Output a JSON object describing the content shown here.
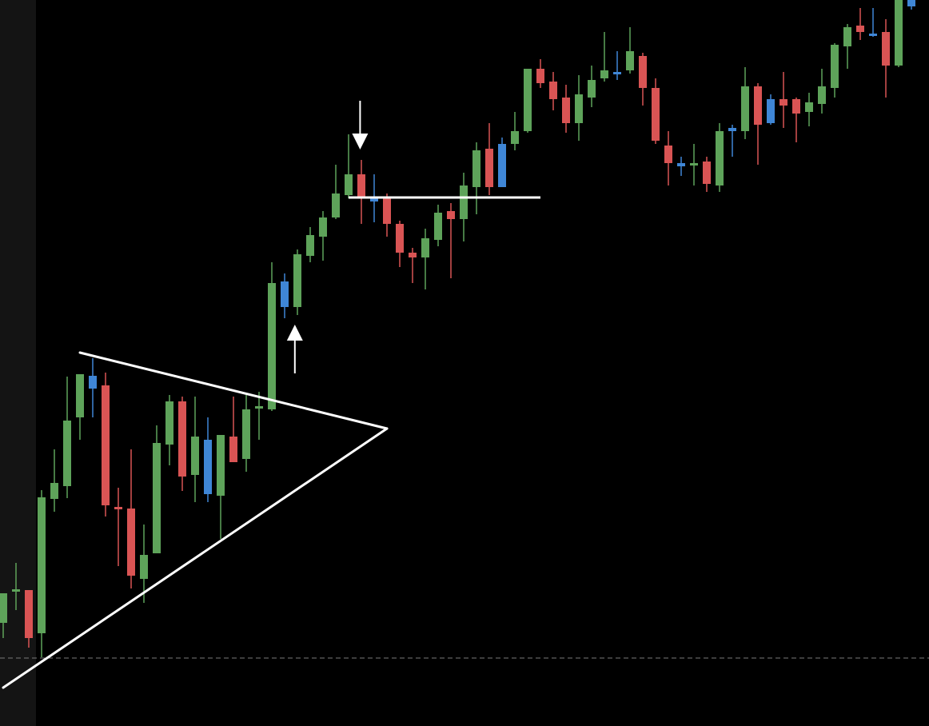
{
  "colors": {
    "background": "#000000",
    "left_panel": "#141414",
    "up": "#5ea35a",
    "down": "#d95454",
    "neutral": "#3f86d6",
    "drawing": "#ffffff",
    "baseline": "#7a7a7a"
  },
  "chart_data": {
    "type": "candlestick",
    "title": "",
    "xlabel": "",
    "ylabel": "",
    "ylim": [
      0,
      908
    ],
    "grid": false,
    "baseline_value": 85,
    "candles": [
      {
        "o": 129,
        "h": 166,
        "l": 110,
        "c": 166,
        "color": "up"
      },
      {
        "o": 169,
        "h": 204,
        "l": 145,
        "c": 171,
        "color": "up"
      },
      {
        "o": 170,
        "h": 170,
        "l": 98,
        "c": 110,
        "color": "down"
      },
      {
        "o": 116,
        "h": 295,
        "l": 86,
        "c": 286,
        "color": "up"
      },
      {
        "o": 284,
        "h": 346,
        "l": 268,
        "c": 304,
        "color": "up"
      },
      {
        "o": 300,
        "h": 437,
        "l": 285,
        "c": 382,
        "color": "up"
      },
      {
        "o": 386,
        "h": 438,
        "l": 358,
        "c": 440,
        "color": "up"
      },
      {
        "o": 438,
        "h": 460,
        "l": 386,
        "c": 422,
        "color": "neutral"
      },
      {
        "o": 426,
        "h": 442,
        "l": 262,
        "c": 276,
        "color": "down"
      },
      {
        "o": 274,
        "h": 298,
        "l": 200,
        "c": 272,
        "color": "down"
      },
      {
        "o": 272,
        "h": 346,
        "l": 172,
        "c": 188,
        "color": "down"
      },
      {
        "o": 184,
        "h": 252,
        "l": 154,
        "c": 214,
        "color": "up"
      },
      {
        "o": 216,
        "h": 376,
        "l": 216,
        "c": 354,
        "color": "up"
      },
      {
        "o": 352,
        "h": 414,
        "l": 326,
        "c": 406,
        "color": "up"
      },
      {
        "o": 406,
        "h": 412,
        "l": 294,
        "c": 312,
        "color": "down"
      },
      {
        "o": 314,
        "h": 412,
        "l": 280,
        "c": 362,
        "color": "up"
      },
      {
        "o": 358,
        "h": 386,
        "l": 280,
        "c": 290,
        "color": "neutral"
      },
      {
        "o": 288,
        "h": 364,
        "l": 234,
        "c": 364,
        "color": "up"
      },
      {
        "o": 362,
        "h": 412,
        "l": 330,
        "c": 330,
        "color": "down"
      },
      {
        "o": 334,
        "h": 414,
        "l": 318,
        "c": 396,
        "color": "up"
      },
      {
        "o": 398,
        "h": 418,
        "l": 358,
        "c": 400,
        "color": "up"
      },
      {
        "o": 396,
        "h": 580,
        "l": 394,
        "c": 554,
        "color": "up"
      },
      {
        "o": 556,
        "h": 566,
        "l": 510,
        "c": 524,
        "color": "neutral"
      },
      {
        "o": 524,
        "h": 596,
        "l": 514,
        "c": 590,
        "color": "up"
      },
      {
        "o": 588,
        "h": 624,
        "l": 580,
        "c": 614,
        "color": "up"
      },
      {
        "o": 612,
        "h": 644,
        "l": 582,
        "c": 636,
        "color": "up"
      },
      {
        "o": 636,
        "h": 702,
        "l": 634,
        "c": 666,
        "color": "up"
      },
      {
        "o": 664,
        "h": 740,
        "l": 660,
        "c": 690,
        "color": "up"
      },
      {
        "o": 690,
        "h": 708,
        "l": 628,
        "c": 660,
        "color": "down"
      },
      {
        "o": 662,
        "h": 690,
        "l": 630,
        "c": 656,
        "color": "neutral"
      },
      {
        "o": 660,
        "h": 666,
        "l": 612,
        "c": 628,
        "color": "down"
      },
      {
        "o": 628,
        "h": 632,
        "l": 574,
        "c": 592,
        "color": "down"
      },
      {
        "o": 592,
        "h": 598,
        "l": 554,
        "c": 586,
        "color": "down"
      },
      {
        "o": 586,
        "h": 622,
        "l": 546,
        "c": 610,
        "color": "up"
      },
      {
        "o": 608,
        "h": 652,
        "l": 600,
        "c": 642,
        "color": "up"
      },
      {
        "o": 644,
        "h": 654,
        "l": 560,
        "c": 634,
        "color": "down"
      },
      {
        "o": 634,
        "h": 692,
        "l": 606,
        "c": 676,
        "color": "up"
      },
      {
        "o": 674,
        "h": 730,
        "l": 640,
        "c": 720,
        "color": "up"
      },
      {
        "o": 722,
        "h": 754,
        "l": 664,
        "c": 674,
        "color": "down"
      },
      {
        "o": 674,
        "h": 736,
        "l": 674,
        "c": 728,
        "color": "neutral"
      },
      {
        "o": 728,
        "h": 768,
        "l": 720,
        "c": 744,
        "color": "up"
      },
      {
        "o": 744,
        "h": 822,
        "l": 742,
        "c": 822,
        "color": "up"
      },
      {
        "o": 822,
        "h": 834,
        "l": 798,
        "c": 804,
        "color": "down"
      },
      {
        "o": 806,
        "h": 818,
        "l": 770,
        "c": 784,
        "color": "down"
      },
      {
        "o": 786,
        "h": 802,
        "l": 742,
        "c": 754,
        "color": "down"
      },
      {
        "o": 754,
        "h": 814,
        "l": 732,
        "c": 790,
        "color": "up"
      },
      {
        "o": 786,
        "h": 826,
        "l": 774,
        "c": 808,
        "color": "up"
      },
      {
        "o": 810,
        "h": 868,
        "l": 806,
        "c": 820,
        "color": "up"
      },
      {
        "o": 818,
        "h": 844,
        "l": 808,
        "c": 816,
        "color": "neutral"
      },
      {
        "o": 820,
        "h": 874,
        "l": 816,
        "c": 844,
        "color": "up"
      },
      {
        "o": 838,
        "h": 842,
        "l": 776,
        "c": 798,
        "color": "down"
      },
      {
        "o": 798,
        "h": 810,
        "l": 728,
        "c": 732,
        "color": "down"
      },
      {
        "o": 726,
        "h": 744,
        "l": 676,
        "c": 704,
        "color": "down"
      },
      {
        "o": 704,
        "h": 712,
        "l": 688,
        "c": 700,
        "color": "neutral"
      },
      {
        "o": 704,
        "h": 728,
        "l": 676,
        "c": 702,
        "color": "up"
      },
      {
        "o": 706,
        "h": 712,
        "l": 668,
        "c": 678,
        "color": "down"
      },
      {
        "o": 676,
        "h": 754,
        "l": 668,
        "c": 744,
        "color": "up"
      },
      {
        "o": 744,
        "h": 752,
        "l": 712,
        "c": 748,
        "color": "neutral"
      },
      {
        "o": 744,
        "h": 824,
        "l": 734,
        "c": 800,
        "color": "up"
      },
      {
        "o": 800,
        "h": 804,
        "l": 702,
        "c": 752,
        "color": "down"
      },
      {
        "o": 754,
        "h": 790,
        "l": 752,
        "c": 784,
        "color": "neutral"
      },
      {
        "o": 784,
        "h": 818,
        "l": 748,
        "c": 776,
        "color": "down"
      },
      {
        "o": 784,
        "h": 786,
        "l": 730,
        "c": 766,
        "color": "down"
      },
      {
        "o": 768,
        "h": 792,
        "l": 750,
        "c": 780,
        "color": "up"
      },
      {
        "o": 778,
        "h": 822,
        "l": 766,
        "c": 800,
        "color": "up"
      },
      {
        "o": 798,
        "h": 854,
        "l": 786,
        "c": 852,
        "color": "up"
      },
      {
        "o": 850,
        "h": 878,
        "l": 822,
        "c": 874,
        "color": "up"
      },
      {
        "o": 876,
        "h": 898,
        "l": 858,
        "c": 868,
        "color": "down"
      },
      {
        "o": 864,
        "h": 898,
        "l": 862,
        "c": 866,
        "color": "neutral"
      },
      {
        "o": 868,
        "h": 884,
        "l": 786,
        "c": 826,
        "color": "down"
      },
      {
        "o": 826,
        "h": 920,
        "l": 824,
        "c": 920,
        "color": "up"
      },
      {
        "o": 900,
        "h": 920,
        "l": 896,
        "c": 910,
        "color": "neutral"
      }
    ],
    "drawings": {
      "triangle_upper": [
        [
          6,
          467
        ],
        [
          30,
          372
        ]
      ],
      "triangle_lower": [
        [
          0,
          48
        ],
        [
          30,
          372
        ]
      ],
      "resistance": [
        [
          27,
          661
        ],
        [
          42,
          661
        ]
      ],
      "arrow_down": {
        "at": 27.9,
        "from": 782,
        "to": 721
      },
      "arrow_up": {
        "at": 22.8,
        "from": 441,
        "to": 502
      }
    }
  }
}
